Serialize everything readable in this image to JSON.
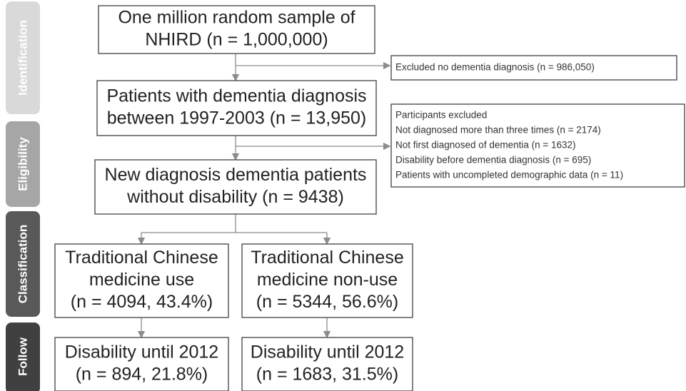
{
  "stages": [
    "Identification",
    "Eligibility",
    "Classification",
    "Follow"
  ],
  "boxes": [
    {
      "lines": [
        "One million random sample of",
        "NHIRD (n = 1,000,000)"
      ]
    },
    {
      "lines": [
        "Patients with dementia diagnosis",
        "between 1997-2003 (n = 13,950)"
      ]
    },
    {
      "lines": [
        "New diagnosis dementia patients",
        "without disability (n = 9438)"
      ]
    },
    {
      "lines": [
        "Traditional Chinese",
        "medicine use",
        "(n = 4094, 43.4%)"
      ]
    },
    {
      "lines": [
        "Traditional Chinese",
        "medicine non-use",
        "(n = 5344, 56.6%)"
      ]
    },
    {
      "lines": [
        "Disability until 2012",
        "(n = 894, 21.8%)"
      ]
    },
    {
      "lines": [
        "Disability until 2012",
        "(n = 1683, 31.5%)"
      ]
    }
  ],
  "exclusions": [
    {
      "lines": [
        "Excluded no dementia diagnosis (n = 986,050)"
      ]
    },
    {
      "lines": [
        "Participants excluded",
        "Not diagnosed more than three times (n = 2174)",
        "Not first diagnosed of dementia (n = 1632)",
        "Disability before dementia diagnosis (n = 695)",
        "Patients with uncompleted demographic data (n = 11)"
      ]
    }
  ]
}
